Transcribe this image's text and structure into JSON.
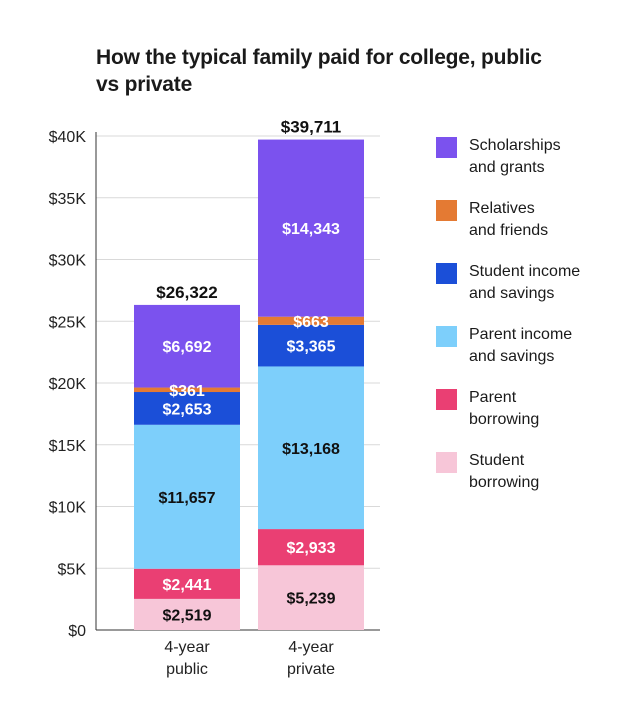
{
  "title": "How the typical family paid for college, public vs private",
  "colors": {
    "Scholarships and grants": "#7b52ee",
    "Relatives and friends": "#e47a33",
    "Student income and savings": "#1b4fd8",
    "Parent income and savings": "#7dcffb",
    "Parent borrowing": "#ea3f73",
    "Student borrowing": "#f7c6d8"
  },
  "chart_data": {
    "type": "bar",
    "stacked": true,
    "categories": [
      "4-year\npublic",
      "4-year\nprivate"
    ],
    "ylim": [
      0,
      40000
    ],
    "yticks": [
      0,
      5000,
      10000,
      15000,
      20000,
      25000,
      30000,
      35000,
      40000
    ],
    "ytick_labels": [
      "$0",
      "$5K",
      "$10K",
      "$15K",
      "$20K",
      "$25K",
      "$30K",
      "$35K",
      "$40K"
    ],
    "grid": true,
    "legend_position": "right",
    "totals": [
      26322,
      39711
    ],
    "total_labels": [
      "$26,322",
      "$39,711"
    ],
    "series": [
      {
        "name": "Student borrowing",
        "values": [
          2519,
          5239
        ],
        "labels": [
          "$2,519",
          "$5,239"
        ]
      },
      {
        "name": "Parent borrowing",
        "values": [
          2441,
          2933
        ],
        "labels": [
          "$2,441",
          "$2,933"
        ]
      },
      {
        "name": "Parent income and savings",
        "values": [
          11657,
          13168
        ],
        "labels": [
          "$11,657",
          "$13,168"
        ]
      },
      {
        "name": "Student income and savings",
        "values": [
          2653,
          3365
        ],
        "labels": [
          "$2,653",
          "$3,365"
        ]
      },
      {
        "name": "Relatives and friends",
        "values": [
          361,
          663
        ],
        "labels": [
          "$361",
          "$663"
        ]
      },
      {
        "name": "Scholarships and grants",
        "values": [
          6692,
          14343
        ],
        "labels": [
          "$6,692",
          "$14,343"
        ]
      }
    ],
    "legend": [
      {
        "name": "Scholarships and grants",
        "label": "Scholarships\nand grants"
      },
      {
        "name": "Relatives and friends",
        "label": "Relatives\nand friends"
      },
      {
        "name": "Student income and savings",
        "label": "Student income\nand savings"
      },
      {
        "name": "Parent income and savings",
        "label": "Parent income\nand savings"
      },
      {
        "name": "Parent borrowing",
        "label": "Parent\nborrowing"
      },
      {
        "name": "Student borrowing",
        "label": "Student\nborrowing"
      }
    ]
  }
}
